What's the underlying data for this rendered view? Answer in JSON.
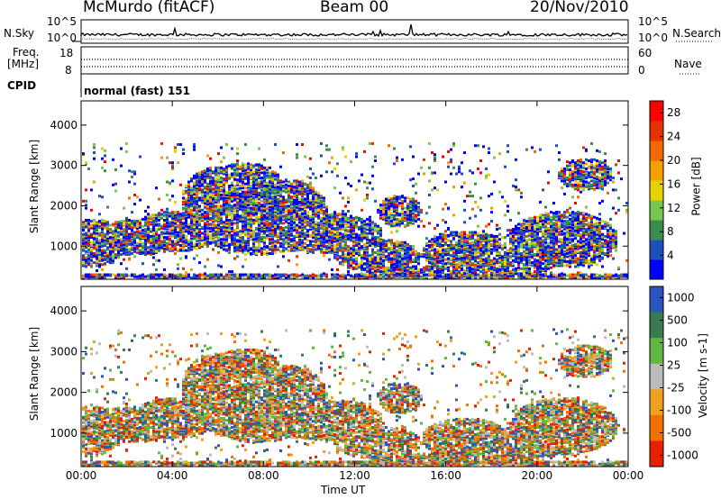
{
  "header": {
    "station": "McMurdo (fitACF)",
    "beam": "Beam 00",
    "date": "20/Nov/2010"
  },
  "panels": {
    "nsky": {
      "left_label": "N.Sky",
      "right_label": "N.Search",
      "left_ticks": [
        "10^5",
        "10^0"
      ],
      "right_ticks": [
        "10^5",
        "10^0"
      ]
    },
    "freq": {
      "left_label_1": "Freq.",
      "left_label_2": "[MHz]",
      "left_ticks": [
        "18",
        "8"
      ],
      "right_label": "Nave",
      "right_ticks": [
        "60",
        "0"
      ]
    },
    "cpid": {
      "label": "CPID",
      "value": "normal (fast) 151"
    }
  },
  "colors": {
    "power_scale": [
      "#0000ff",
      "#1f4fbf",
      "#3c8c4c",
      "#78c850",
      "#e6d200",
      "#f5a000",
      "#f06a00",
      "#e63000",
      "#ff0000"
    ],
    "velocity_scale": [
      "#2a55c0",
      "#3a7a50",
      "#60b840",
      "#bcbcbc",
      "#f0a020",
      "#f07000",
      "#e82000"
    ]
  },
  "chart_data": [
    {
      "type": "heatmap",
      "ylabel": "Slant Range [km]",
      "xlabel": "",
      "x_ticks": [
        "00:00",
        "04:00",
        "08:00",
        "12:00",
        "16:00",
        "20:00",
        "00:00"
      ],
      "y_ticks": [
        "1000",
        "2000",
        "3000",
        "4000"
      ],
      "ylim": [
        180,
        4600
      ],
      "colorbar": {
        "label": "Power [dB]",
        "ticks": [
          "4",
          "8",
          "12",
          "16",
          "20",
          "24",
          "28"
        ],
        "range": [
          0,
          30
        ]
      }
    },
    {
      "type": "heatmap",
      "ylabel": "Slant Range [km]",
      "xlabel": "Time UT",
      "x_ticks": [
        "00:00",
        "04:00",
        "08:00",
        "12:00",
        "16:00",
        "20:00",
        "00:00"
      ],
      "y_ticks": [
        "1000",
        "2000",
        "3000",
        "4000"
      ],
      "ylim": [
        180,
        4600
      ],
      "colorbar": {
        "label": "Velocity [m s-1]",
        "ticks": [
          "1000",
          "500",
          "100",
          "25",
          "-25",
          "-100",
          "-500",
          "-1000"
        ]
      }
    }
  ]
}
